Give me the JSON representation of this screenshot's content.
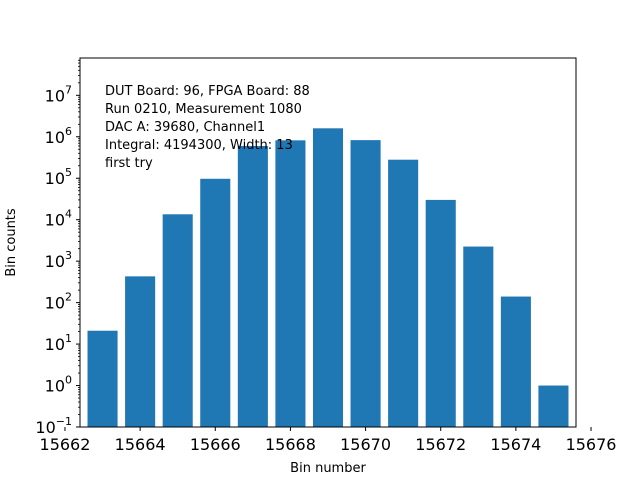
{
  "chart_data": {
    "type": "bar",
    "x": [
      15663,
      15664,
      15665,
      15666,
      15667,
      15668,
      15669,
      15670,
      15671,
      15672,
      15673,
      15674,
      15675
    ],
    "values": [
      21,
      430,
      13500,
      97000,
      600000,
      820000,
      1600000,
      830000,
      280000,
      30000,
      2250,
      140,
      1
    ],
    "xlabel": "Bin number",
    "ylabel": "Bin counts",
    "xlim": [
      15662.4,
      15675.6
    ],
    "ylog": true,
    "ylim_exponents": [
      -1,
      7.9
    ],
    "xticks": [
      "15662",
      "15664",
      "15666",
      "15668",
      "15670",
      "15672",
      "15674",
      "15676"
    ],
    "yticks": [
      {
        "base": "10",
        "exp": "−1"
      },
      {
        "base": "10",
        "exp": "0"
      },
      {
        "base": "10",
        "exp": "1"
      },
      {
        "base": "10",
        "exp": "2"
      },
      {
        "base": "10",
        "exp": "3"
      },
      {
        "base": "10",
        "exp": "4"
      },
      {
        "base": "10",
        "exp": "5"
      },
      {
        "base": "10",
        "exp": "6"
      },
      {
        "base": "10",
        "exp": "7"
      }
    ],
    "annotations": [
      "DUT Board: 96, FPGA Board: 88",
      "Run 0210, Measurement 1080",
      "DAC A: 39680, Channel1",
      "Integral: 4194300, Width: 13",
      "first try"
    ],
    "bar_color": "#1f77b4",
    "grid": false
  }
}
